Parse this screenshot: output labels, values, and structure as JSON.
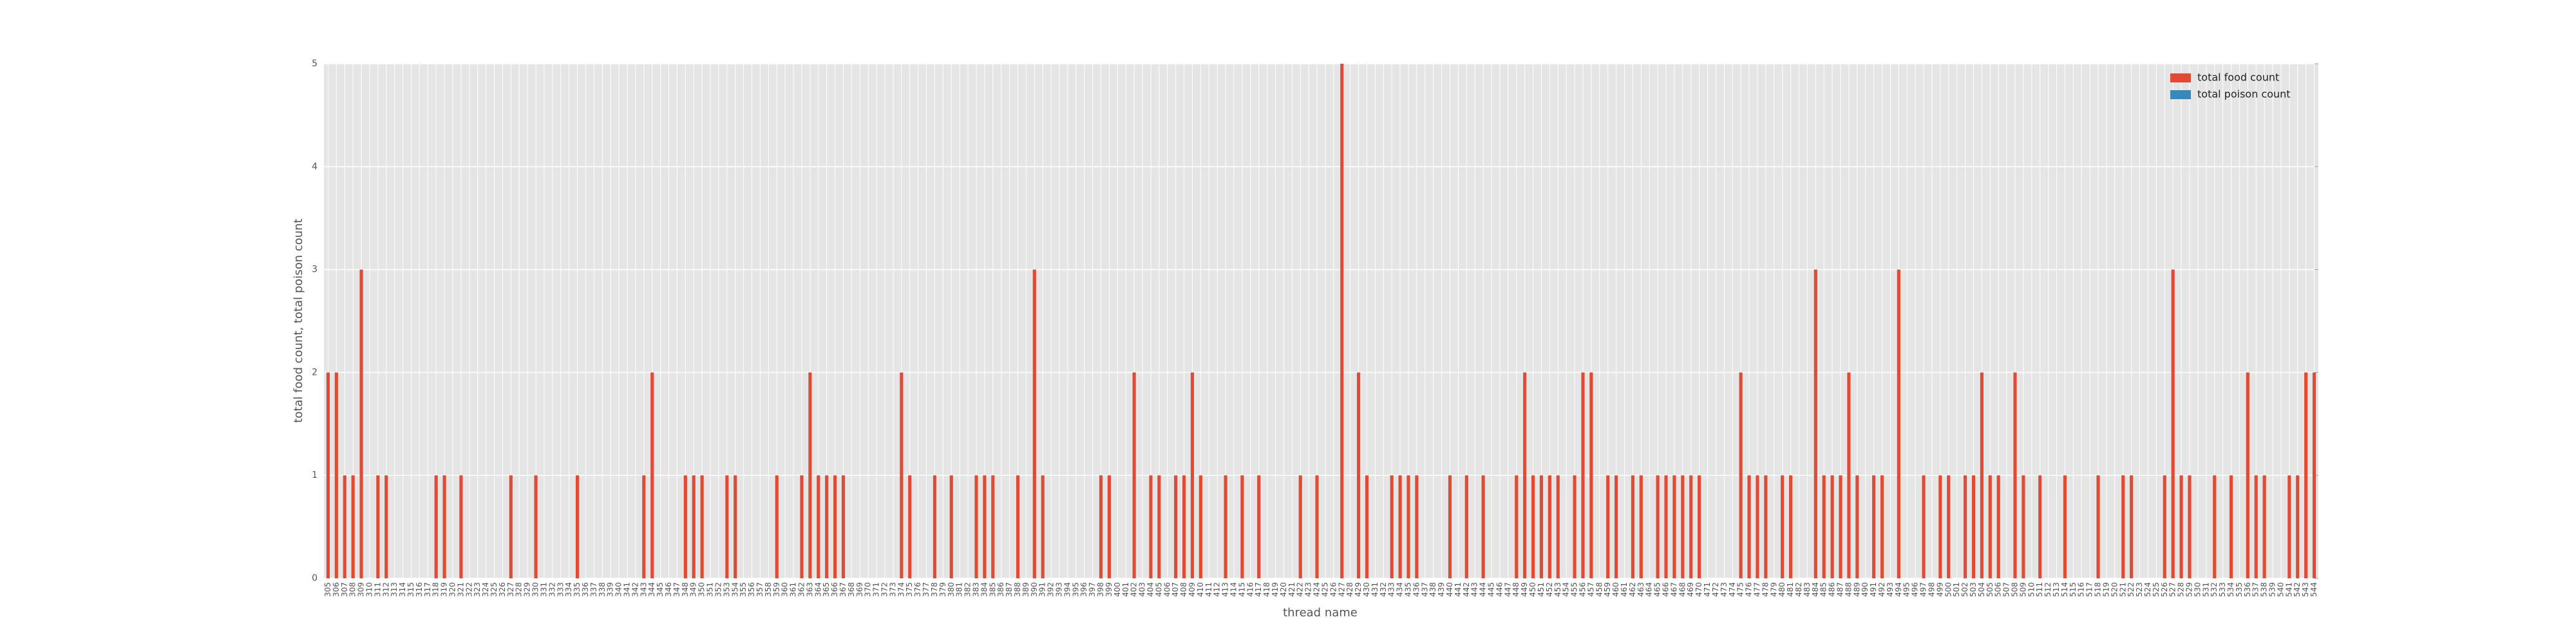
{
  "chart_data": {
    "type": "bar",
    "stacked": true,
    "xlabel": "thread name",
    "ylabel": "total food count, total poison count",
    "ylim": [
      0,
      5
    ],
    "yticks": [
      0,
      1,
      2,
      3,
      4,
      5
    ],
    "grid": true,
    "legend": "upper right",
    "categories": [
      "305",
      "306",
      "307",
      "308",
      "309",
      "310",
      "311",
      "312",
      "313",
      "314",
      "315",
      "316",
      "317",
      "318",
      "319",
      "320",
      "321",
      "322",
      "323",
      "324",
      "325",
      "326",
      "327",
      "328",
      "329",
      "330",
      "331",
      "332",
      "333",
      "334",
      "335",
      "336",
      "337",
      "338",
      "339",
      "340",
      "341",
      "342",
      "343",
      "344",
      "345",
      "346",
      "347",
      "348",
      "349",
      "350",
      "351",
      "352",
      "353",
      "354",
      "355",
      "356",
      "357",
      "358",
      "359",
      "360",
      "361",
      "362",
      "363",
      "364",
      "365",
      "366",
      "367",
      "368",
      "369",
      "370",
      "371",
      "372",
      "373",
      "374",
      "375",
      "376",
      "377",
      "378",
      "379",
      "380",
      "381",
      "382",
      "383",
      "384",
      "385",
      "386",
      "387",
      "388",
      "389",
      "390",
      "391",
      "392",
      "393",
      "394",
      "395",
      "396",
      "397",
      "398",
      "399",
      "400",
      "401",
      "402",
      "403",
      "404",
      "405",
      "406",
      "407",
      "408",
      "409",
      "410",
      "411",
      "412",
      "413",
      "414",
      "415",
      "416",
      "417",
      "418",
      "419",
      "420",
      "421",
      "422",
      "423",
      "424",
      "425",
      "426",
      "427",
      "428",
      "429",
      "430",
      "431",
      "432",
      "433",
      "434",
      "435",
      "436",
      "437",
      "438",
      "439",
      "440",
      "441",
      "442",
      "443",
      "444",
      "445",
      "446",
      "447",
      "448",
      "449",
      "450",
      "451",
      "452",
      "453",
      "454",
      "455",
      "456",
      "457",
      "458",
      "459",
      "460",
      "461",
      "462",
      "463",
      "464",
      "465",
      "466",
      "467",
      "468",
      "469",
      "470",
      "471",
      "472",
      "473",
      "474",
      "475",
      "476",
      "477",
      "478",
      "479",
      "480",
      "481",
      "482",
      "483",
      "484",
      "485",
      "486",
      "487",
      "488",
      "489",
      "490",
      "491",
      "492",
      "493",
      "494",
      "495",
      "496",
      "497",
      "498",
      "499",
      "500",
      "501",
      "502",
      "503",
      "504",
      "505",
      "506",
      "507",
      "508",
      "509",
      "510",
      "511",
      "512",
      "513",
      "514",
      "515",
      "516",
      "517",
      "518",
      "519",
      "520",
      "521",
      "522",
      "523",
      "524",
      "525",
      "526",
      "527",
      "528",
      "529",
      "530",
      "531",
      "532",
      "533",
      "534",
      "535",
      "536",
      "537",
      "538",
      "539",
      "540",
      "541",
      "542",
      "543",
      "544"
    ],
    "series": [
      {
        "name": "total food count",
        "color": "#e24a33",
        "values": [
          2,
          2,
          1,
          1,
          3,
          0,
          1,
          1,
          0,
          0,
          0,
          0,
          0,
          1,
          1,
          0,
          1,
          0,
          0,
          0,
          0,
          0,
          1,
          0,
          0,
          1,
          0,
          0,
          0,
          0,
          1,
          0,
          0,
          0,
          0,
          0,
          0,
          0,
          1,
          2,
          0,
          0,
          0,
          1,
          1,
          1,
          0,
          0,
          1,
          1,
          0,
          0,
          0,
          0,
          1,
          0,
          0,
          1,
          2,
          1,
          1,
          1,
          1,
          0,
          0,
          0,
          0,
          0,
          0,
          2,
          1,
          0,
          0,
          1,
          0,
          1,
          0,
          0,
          1,
          1,
          1,
          0,
          0,
          1,
          0,
          3,
          1,
          0,
          0,
          0,
          0,
          0,
          0,
          1,
          1,
          0,
          0,
          2,
          0,
          1,
          1,
          0,
          1,
          1,
          2,
          1,
          0,
          0,
          1,
          0,
          1,
          0,
          1,
          0,
          0,
          0,
          0,
          1,
          0,
          1,
          0,
          0,
          5,
          0,
          2,
          1,
          0,
          0,
          1,
          1,
          1,
          1,
          0,
          0,
          0,
          1,
          0,
          1,
          0,
          1,
          0,
          0,
          0,
          1,
          2,
          1,
          1,
          1,
          1,
          0,
          1,
          2,
          2,
          0,
          1,
          1,
          0,
          1,
          1,
          0,
          1,
          1,
          1,
          1,
          1,
          1,
          0,
          0,
          0,
          0,
          2,
          1,
          1,
          1,
          0,
          1,
          1,
          0,
          0,
          3,
          1,
          1,
          1,
          2,
          1,
          0,
          1,
          1,
          0,
          3,
          0,
          0,
          1,
          0,
          1,
          1,
          0,
          1,
          1,
          2,
          1,
          1,
          0,
          2,
          1,
          0,
          1,
          0,
          0,
          1,
          0,
          0,
          0,
          1,
          0,
          0,
          1,
          1,
          0,
          0,
          0,
          1,
          3,
          1,
          1,
          0,
          0,
          1,
          0,
          1,
          0,
          2,
          1,
          1,
          0,
          0,
          1,
          1,
          2,
          2
        ]
      },
      {
        "name": "total poison count",
        "color": "#348abd",
        "values": [
          0,
          0,
          0,
          0,
          0,
          0,
          0,
          0,
          0,
          0,
          0,
          0,
          0,
          0,
          0,
          0,
          0,
          0,
          0,
          0,
          0,
          0,
          0,
          0,
          0,
          0,
          0,
          0,
          0,
          0,
          0,
          0,
          0,
          0,
          0,
          0,
          0,
          0,
          0,
          0,
          0,
          0,
          0,
          0,
          0,
          0,
          0,
          0,
          0,
          0,
          0,
          0,
          0,
          0,
          0,
          0,
          0,
          0,
          0,
          0,
          0,
          0,
          0,
          0,
          0,
          0,
          0,
          0,
          0,
          0,
          0,
          0,
          0,
          0,
          0,
          0,
          0,
          0,
          0,
          0,
          0,
          0,
          0,
          0,
          0,
          0,
          0,
          0,
          0,
          0,
          0,
          0,
          0,
          0,
          0,
          0,
          0,
          0,
          0,
          0,
          0,
          0,
          0,
          0,
          0,
          0,
          0,
          0,
          0,
          0,
          0,
          0,
          0,
          0,
          0,
          0,
          0,
          0,
          0,
          0,
          0,
          0,
          0,
          0,
          0,
          0,
          0,
          0,
          0,
          0,
          0,
          0,
          0,
          0,
          0,
          0,
          0,
          0,
          0,
          0,
          0,
          0,
          0,
          0,
          0,
          0,
          0,
          0,
          0,
          0,
          0,
          0,
          0,
          0,
          0,
          0,
          0,
          0,
          0,
          0,
          0,
          0,
          0,
          0,
          0,
          0,
          0,
          0,
          0,
          0,
          0,
          0,
          0,
          0,
          0,
          0,
          0,
          0,
          0,
          0,
          0,
          0,
          0,
          0,
          0,
          0,
          0,
          0,
          0,
          0,
          0,
          0,
          0,
          0,
          0,
          0,
          0,
          0,
          0,
          0,
          0,
          0,
          0,
          0,
          0,
          0,
          0,
          0,
          0,
          0,
          0,
          0,
          0,
          0,
          0,
          0,
          0,
          0,
          0,
          0,
          0,
          0,
          0,
          0,
          0,
          0,
          0,
          0,
          0,
          0,
          0,
          0,
          0,
          0,
          0,
          0,
          0,
          0,
          0,
          0
        ]
      }
    ]
  }
}
